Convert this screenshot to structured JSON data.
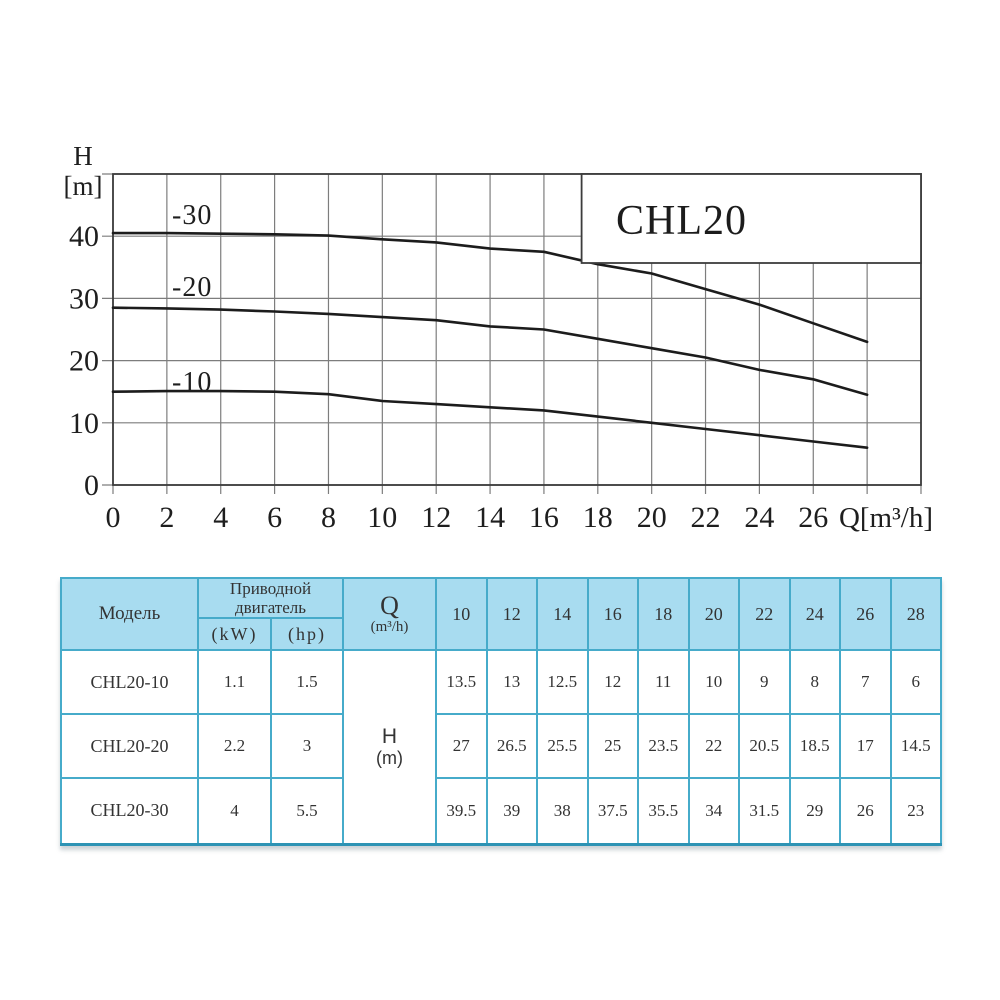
{
  "chart": {
    "title": "CHL20",
    "y_axis_label_line1": "H",
    "y_axis_label_line2": "[m]",
    "x_axis_unit": "Q[m³/h]"
  },
  "chart_data": {
    "type": "line",
    "title": "CHL20",
    "xlabel": "Q[m³/h]",
    "ylabel": "H [m]",
    "xlim": [
      0,
      30
    ],
    "ylim": [
      0,
      50
    ],
    "x_grid_step": 2,
    "y_grid_step": 10,
    "grid": true,
    "legend_position": "labels above curves",
    "x_tick_labels": [
      "0",
      "2",
      "4",
      "6",
      "8",
      "10",
      "12",
      "14",
      "16",
      "18",
      "20",
      "22",
      "24",
      "26"
    ],
    "y_tick_labels": [
      "0",
      "10",
      "20",
      "30",
      "40"
    ],
    "x": [
      0,
      2,
      4,
      6,
      8,
      10,
      12,
      14,
      16,
      18,
      20,
      22,
      24,
      26,
      28
    ],
    "series": [
      {
        "name": "CHL20-30",
        "label": "-30",
        "values": [
          40.5,
          40.5,
          40.4,
          40.3,
          40.1,
          39.5,
          39,
          38,
          37.5,
          35.5,
          34,
          31.5,
          29,
          26,
          23
        ]
      },
      {
        "name": "CHL20-20",
        "label": "-20",
        "values": [
          28.5,
          28.4,
          28.2,
          27.9,
          27.5,
          27,
          26.5,
          25.5,
          25,
          23.5,
          22,
          20.5,
          18.5,
          17,
          14.5
        ]
      },
      {
        "name": "CHL20-10",
        "label": "-10",
        "values": [
          15,
          15.1,
          15.1,
          15,
          14.6,
          13.5,
          13,
          12.5,
          12,
          11,
          10,
          9,
          8,
          7,
          6
        ]
      }
    ]
  },
  "table": {
    "col_model": "Модель",
    "col_motor": "Приводной двигатель",
    "col_kw": "(kW)",
    "col_hp": "(hp)",
    "col_q_line1": "Q",
    "col_q_line2": "(m³/h)",
    "q_values": [
      "10",
      "12",
      "14",
      "16",
      "18",
      "20",
      "22",
      "24",
      "26",
      "28"
    ],
    "h_cell_line1": "H",
    "h_cell_line2": "(m)",
    "rows": [
      {
        "model": "CHL20-10",
        "kw": "1.1",
        "hp": "1.5",
        "values": [
          "13.5",
          "13",
          "12.5",
          "12",
          "11",
          "10",
          "9",
          "8",
          "7",
          "6"
        ]
      },
      {
        "model": "CHL20-20",
        "kw": "2.2",
        "hp": "3",
        "values": [
          "27",
          "26.5",
          "25.5",
          "25",
          "23.5",
          "22",
          "20.5",
          "18.5",
          "17",
          "14.5"
        ]
      },
      {
        "model": "CHL20-30",
        "kw": "4",
        "hp": "5.5",
        "values": [
          "39.5",
          "39",
          "38",
          "37.5",
          "35.5",
          "34",
          "31.5",
          "29",
          "26",
          "23"
        ]
      }
    ],
    "colors": {
      "header_bg": "#a8dcf0",
      "border": "#46abca",
      "border_dark": "#2d93b4",
      "curve": "#1c1c1c"
    }
  }
}
